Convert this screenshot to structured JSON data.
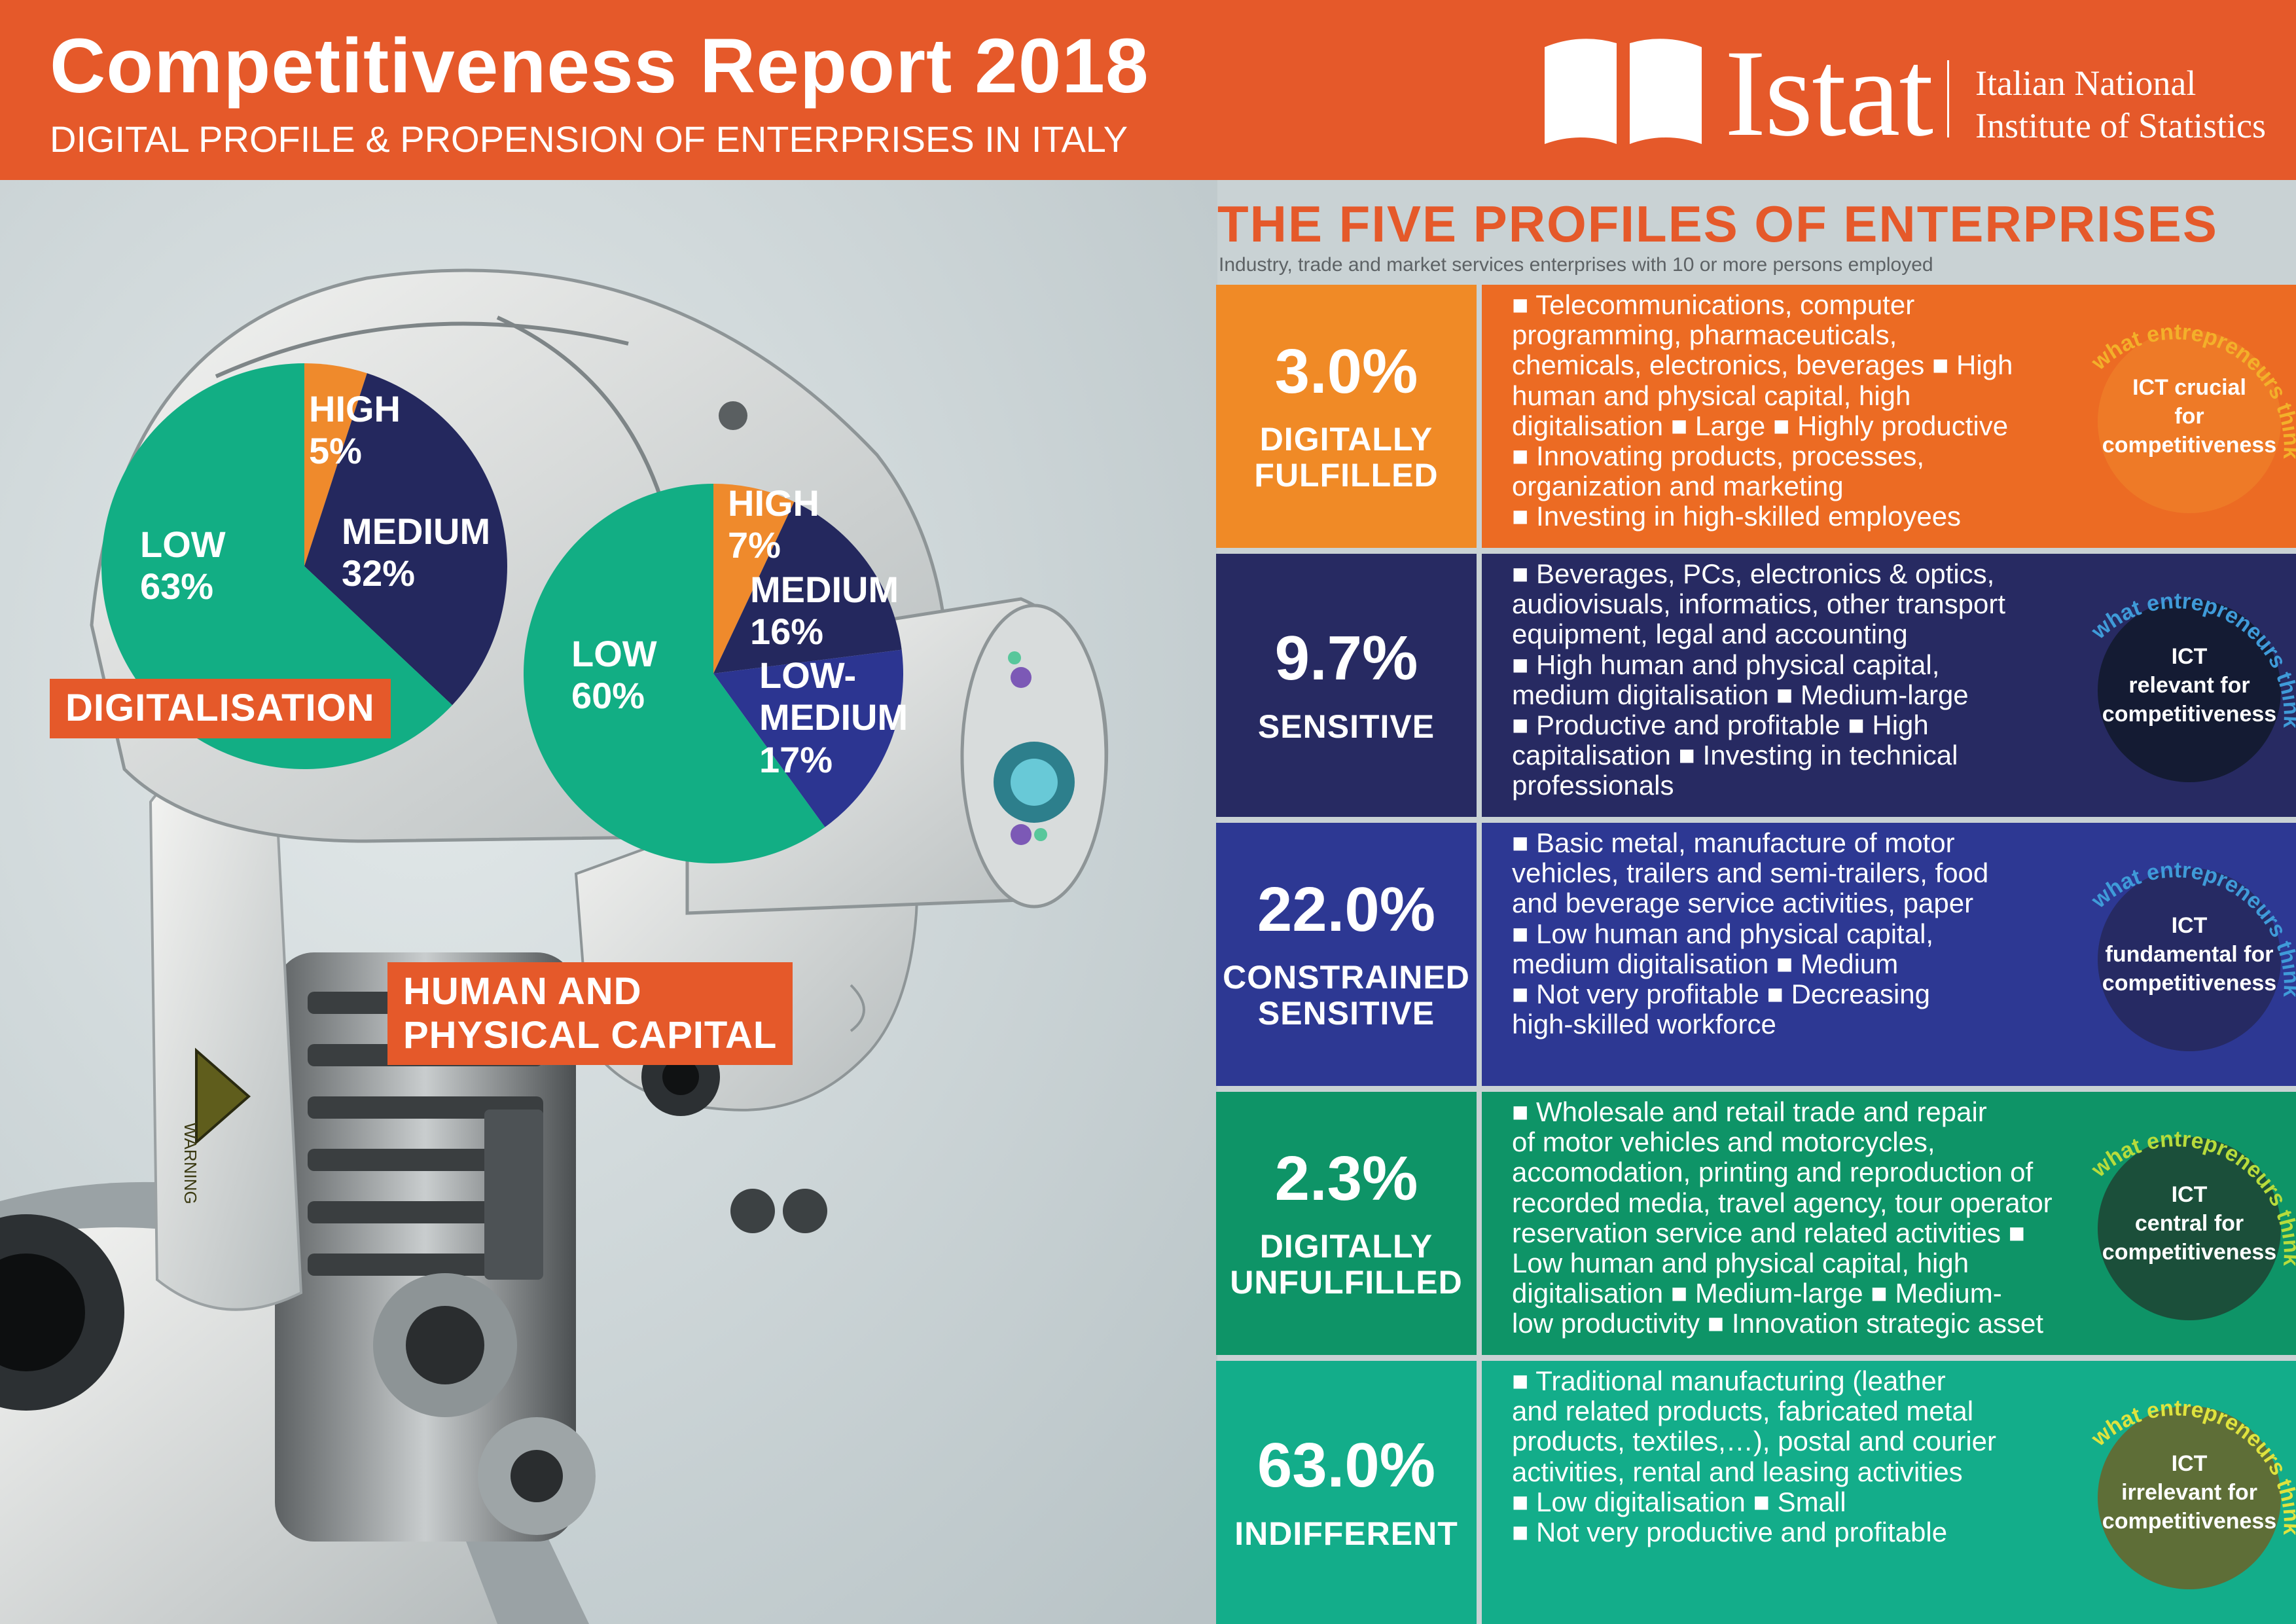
{
  "header": {
    "title": "Competitiveness Report 2018",
    "subtitle": "DIGITAL PROFILE & PROPENSION OF ENTERPRISES IN ITALY",
    "logo_name": "Istat",
    "logo_tagline_1": "Italian National",
    "logo_tagline_2": "Institute of Statistics"
  },
  "charts": {
    "digitalisation": {
      "tag": "DIGITALISATION",
      "slices": [
        {
          "label": "HIGH",
          "pct": "5%",
          "value": 5,
          "color": "#ef8a2c"
        },
        {
          "label": "MEDIUM",
          "pct": "32%",
          "value": 32,
          "color": "#24285e"
        },
        {
          "label": "LOW",
          "pct": "63%",
          "value": 63,
          "color": "#12ae84"
        }
      ]
    },
    "capital": {
      "tag_1": "HUMAN AND",
      "tag_2": "PHYSICAL CAPITAL",
      "slices": [
        {
          "label": "HIGH",
          "pct": "7%",
          "value": 7,
          "color": "#ef8a2c"
        },
        {
          "label": "MEDIUM",
          "pct": "16%",
          "value": 16,
          "color": "#24285e"
        },
        {
          "label_1": "LOW-",
          "label_2": "MEDIUM",
          "pct": "17%",
          "value": 17,
          "color": "#2c3591"
        },
        {
          "label": "LOW",
          "pct": "60%",
          "value": 60,
          "color": "#12ae84"
        }
      ]
    }
  },
  "robot": {
    "warning_label": "WARNING"
  },
  "profiles_section": {
    "title": "THE FIVE PROFILES OF ENTERPRISES",
    "subtitle": "Industry, trade and market services enterprises with 10 or more persons employed",
    "arc_text": "what entrepreneurs think",
    "items": [
      {
        "pct": "3.0%",
        "name_1": "DIGITALLY",
        "name_2": "FULFILLED",
        "lines": [
          "■ Telecommunications, computer",
          "programming, pharmaceuticals,",
          "chemicals, electronics, beverages ■ High",
          "human and physical capital, high",
          "digitalisation ■ Large ■ Highly productive",
          "■ Innovating products, processes,",
          "organization and marketing",
          "■ Investing in high-skilled employees"
        ],
        "badge_1": "ICT crucial",
        "badge_2": "for",
        "badge_3": "competitiveness",
        "left_color": "#f08a26",
        "right_color": "#ec6b23",
        "circle_color": "#ee7a27",
        "arc_color": "#f3b02a"
      },
      {
        "pct": "9.7%",
        "name_1": "SENSITIVE",
        "name_2": "",
        "lines": [
          "■ Beverages, PCs, electronics & optics,",
          "audiovisuals, informatics, other transport",
          "equipment, legal and accounting",
          "■ High human and physical capital,",
          "medium digitalisation ■ Medium-large",
          "■ Productive and profitable ■ High",
          "capitalisation ■ Investing in technical",
          "professionals"
        ],
        "badge_1": "ICT",
        "badge_2": "relevant for",
        "badge_3": "competitiveness",
        "left_color": "#272a62",
        "right_color": "#272a62",
        "circle_color": "#141b33",
        "arc_color": "#3f9bd9"
      },
      {
        "pct": "22.0%",
        "name_1": "CONSTRAINED",
        "name_2": "SENSITIVE",
        "lines": [
          "■ Basic metal, manufacture of motor",
          "vehicles, trailers and semi-trailers, food",
          "and beverage service activities, paper",
          "■ Low human and physical capital,",
          "medium digitalisation ■ Medium",
          "■ Not very profitable ■ Decreasing",
          "high-skilled workforce"
        ],
        "badge_1": "ICT",
        "badge_2": "fundamental for",
        "badge_3": "competitiveness",
        "left_color": "#2d3893",
        "right_color": "#2d3893",
        "circle_color": "#262a63",
        "arc_color": "#3f9bd9"
      },
      {
        "pct": "2.3%",
        "name_1": "DIGITALLY",
        "name_2": "UNFULFILLED",
        "lines": [
          "■ Wholesale and retail trade and repair",
          "of motor vehicles and motorcycles,",
          "accomodation, printing and reproduction of",
          "recorded media, travel agency, tour operator",
          "reservation service and related activities ■",
          "Low human and physical capital, high",
          "digitalisation ■ Medium-large ■ Medium-",
          "low productivity ■ Innovation strategic asset"
        ],
        "badge_1": "ICT",
        "badge_2": "central for",
        "badge_3": "competitiveness",
        "left_color": "#0e9467",
        "right_color": "#0e9467",
        "circle_color": "#1b4f3a",
        "arc_color": "#b7dc3c"
      },
      {
        "pct": "63.0%",
        "name_1": "INDIFFERENT",
        "name_2": "",
        "lines": [
          "■ Traditional manufacturing (leather",
          "and related products, fabricated metal",
          "products, textiles,…), postal and courier",
          "activities, rental and leasing activities",
          "■ Low digitalisation ■ Small",
          "■ Not very productive and profitable"
        ],
        "badge_1": "ICT",
        "badge_2": "irrelevant for",
        "badge_3": "competitiveness",
        "left_color": "#13ad8a",
        "right_color": "#13ad8a",
        "circle_color": "#5e6e37",
        "arc_color": "#dfe33e"
      }
    ]
  }
}
